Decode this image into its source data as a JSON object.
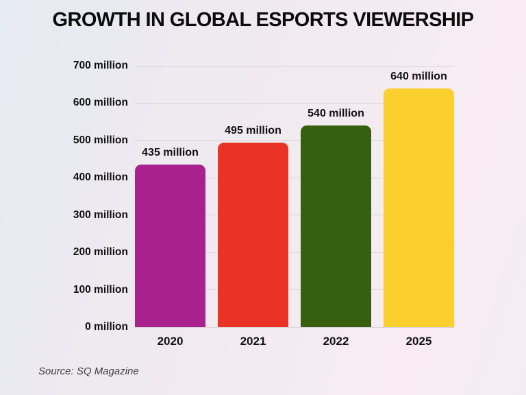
{
  "title": "GROWTH IN GLOBAL ESPORTS VIEWERSHIP",
  "source": "Source: SQ Magazine",
  "chart_data": {
    "type": "bar",
    "title": "GROWTH IN GLOBAL ESPORTS VIEWERSHIP",
    "categories": [
      "2020",
      "2021",
      "2022",
      "2025"
    ],
    "values": [
      435,
      495,
      540,
      640
    ],
    "value_labels": [
      "435 million",
      "495 million",
      "540 million",
      "640 million"
    ],
    "bar_colors": [
      "#a9218c",
      "#e93425",
      "#36600f",
      "#fbcf2e"
    ],
    "xlabel": "",
    "ylabel": "",
    "unit": "million",
    "ylim": [
      0,
      700
    ],
    "ytick_step": 100,
    "ytick_labels_top_to_bottom": [
      "700 million",
      "600 million",
      "500 million",
      "400 million",
      "300 million",
      "200 million",
      "100 million",
      "0 million"
    ],
    "grid": "horizontal",
    "legend": "none",
    "caption": "Source: SQ Magazine"
  },
  "colors": {
    "gridline": "#d8d4d8",
    "title_text": "#0c0c0c",
    "axis_text": "#111111",
    "source_text": "#3f3f3f",
    "background_top_left": "#e6eaf3",
    "background_bottom_right": "#f3edf1"
  }
}
